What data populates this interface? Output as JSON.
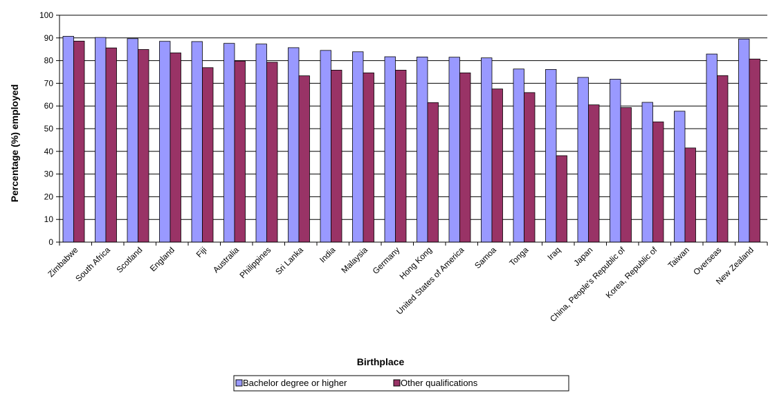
{
  "chart_data": {
    "type": "bar",
    "categories": [
      "Zimbabwe",
      "South Africa",
      "Scotland",
      "England",
      "Fiji",
      "Australia",
      "Philippines",
      "Sri Lanka",
      "India",
      "Malaysia",
      "Germany",
      "Hong Kong",
      "United States of America",
      "Samoa",
      "Tonga",
      "Iraq",
      "Japan",
      "China, People's Republic of",
      "Korea, Republic of",
      "Taiwan",
      "Overseas",
      "New Zealand"
    ],
    "series": [
      {
        "name": "Bachelor degree or higher",
        "color": "#9999FF",
        "values": [
          90.7,
          90.2,
          89.7,
          88.5,
          88.4,
          87.6,
          87.3,
          85.7,
          84.5,
          83.9,
          81.7,
          81.6,
          81.5,
          81.2,
          76.3,
          76.1,
          72.6,
          71.8,
          61.6,
          57.7,
          82.9,
          89.5
        ]
      },
      {
        "name": "Other qualifications",
        "color": "#993366",
        "values": [
          88.6,
          85.6,
          84.9,
          83.4,
          76.9,
          79.8,
          79.3,
          73.3,
          75.8,
          74.6,
          75.8,
          61.5,
          74.6,
          67.5,
          65.9,
          38.1,
          60.5,
          59.3,
          53.0,
          41.5,
          73.4,
          80.7
        ]
      }
    ],
    "xlabel": "Birthplace",
    "ylabel": "Percentage (%) employed",
    "ylim": [
      0,
      100
    ],
    "yticks": [
      0,
      10,
      20,
      30,
      40,
      50,
      60,
      70,
      80,
      90,
      100
    ],
    "grid": true,
    "legend_position": "bottom"
  }
}
